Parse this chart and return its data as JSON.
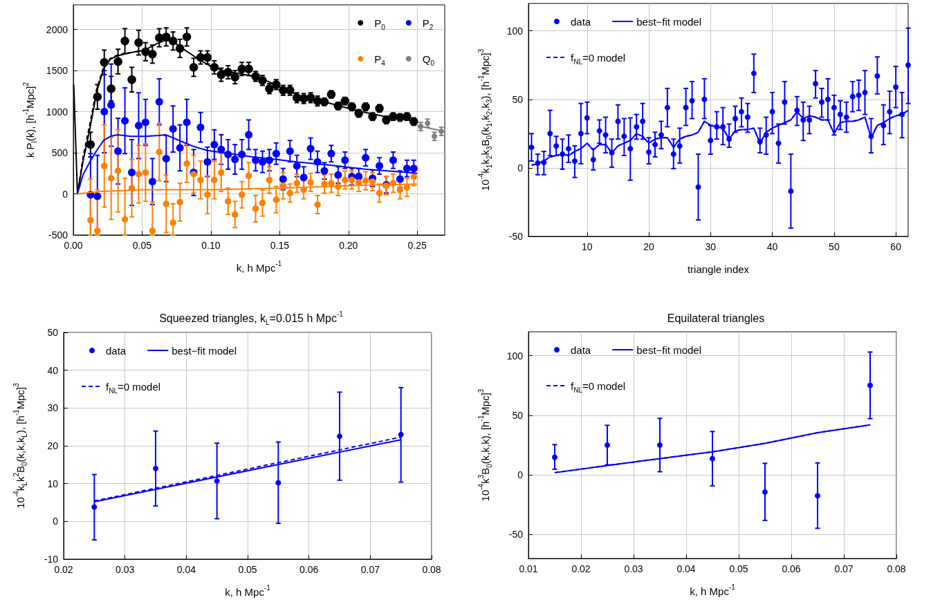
{
  "chart_data": [
    {
      "type": "scatter",
      "xlabel": "k, h Mpc$^{-1}$",
      "ylabel": "k P$_{l}$(k), [h$^{-1}$Mpc]$^{2}$",
      "xlim": [
        0,
        0.27
      ],
      "xticks": [
        {
          "value": 0,
          "label": "0.00"
        },
        {
          "value": 0.05,
          "label": "0.05"
        },
        {
          "value": 0.1,
          "label": "0.10"
        },
        {
          "value": 0.15,
          "label": "0.15"
        },
        {
          "value": 0.2,
          "label": "0.20"
        },
        {
          "value": 0.25,
          "label": "0.25"
        }
      ],
      "ylim": [
        -500,
        2300
      ],
      "yticks": [
        -500,
        0,
        500,
        1000,
        1500,
        2000
      ],
      "grid": true,
      "legend": "top right",
      "marker": "circle",
      "x": [
        0.0125,
        0.0175,
        0.0225,
        0.0275,
        0.0325,
        0.0375,
        0.0425,
        0.0475,
        0.0525,
        0.0575,
        0.0625,
        0.0675,
        0.0725,
        0.0775,
        0.0825,
        0.0875,
        0.0925,
        0.0975,
        0.1025,
        0.1075,
        0.1125,
        0.1175,
        0.1225,
        0.1275,
        0.1325,
        0.1375,
        0.1425,
        0.1475,
        0.1525,
        0.1575,
        0.1625,
        0.1675,
        0.1725,
        0.1775,
        0.1825,
        0.1875,
        0.1925,
        0.1975,
        0.2025,
        0.2075,
        0.2125,
        0.2175,
        0.2225,
        0.2275,
        0.2325,
        0.2375,
        0.2425,
        0.2475
      ],
      "series": [
        {
          "type": "line",
          "marker": "none",
          "color": "#000000",
          "x": [
            0.0003,
            0.003,
            0.007,
            0.012,
            0.017,
            0.022,
            0.027,
            0.032,
            0.042,
            0.052,
            0.061,
            0.067,
            0.072,
            0.081,
            0.091,
            0.101,
            0.111,
            0.1225,
            0.134,
            0.147,
            0.152,
            0.167,
            0.187,
            0.207,
            0.227,
            0.25
          ],
          "values": [
            1330,
            0,
            390,
            790,
            1240,
            1520,
            1640,
            1680,
            1720,
            1750,
            1830,
            1870,
            1860,
            1750,
            1640,
            1540,
            1490,
            1460,
            1420,
            1330,
            1280,
            1180,
            1100,
            1010,
            940,
            880
          ]
        },
        {
          "type": "line",
          "marker": "none",
          "line_style": "dashed",
          "color": "#000000",
          "x": [
            0.003,
            0.007,
            0.012,
            0.017,
            0.022,
            0.027,
            0.032,
            0.042,
            0.052
          ],
          "values": [
            0,
            440,
            850,
            1280,
            1540,
            1650,
            1690,
            1720,
            1750
          ]
        },
        {
          "type": "line",
          "marker": "none",
          "color": "#0000ff",
          "x": [
            0.003,
            0.007,
            0.012,
            0.017,
            0.022,
            0.027,
            0.032,
            0.042,
            0.052,
            0.062,
            0.067,
            0.077,
            0.087,
            0.097,
            0.114,
            0.13,
            0.147,
            0.162,
            0.187,
            0.212,
            0.237,
            0.25
          ],
          "values": [
            0,
            230,
            390,
            530,
            650,
            700,
            720,
            700,
            700,
            710,
            720,
            650,
            580,
            530,
            490,
            450,
            420,
            390,
            350,
            300,
            270,
            250
          ]
        },
        {
          "type": "line",
          "marker": "none",
          "color": "#ff8000",
          "x": [
            0.003,
            0.02,
            0.05,
            0.1,
            0.15,
            0.2,
            0.25
          ],
          "values": [
            0,
            30,
            50,
            50,
            70,
            100,
            120
          ]
        },
        {
          "type": "line",
          "marker": "none",
          "color": "#808080",
          "x": [
            0.25,
            0.27
          ],
          "values": [
            830,
            760
          ]
        },
        {
          "name": "P$_{0}$",
          "color": "#000000",
          "values": [
            600,
            1180,
            1600,
            1280,
            1610,
            1860,
            1390,
            1840,
            1730,
            1700,
            1900,
            1910,
            1860,
            1770,
            1910,
            1540,
            1660,
            1660,
            1540,
            1450,
            1480,
            1420,
            1520,
            1520,
            1430,
            1380,
            1280,
            1330,
            1260,
            1260,
            1170,
            1160,
            1170,
            1130,
            1120,
            1210,
            1070,
            1130,
            1060,
            980,
            1060,
            940,
            1040,
            900,
            940,
            930,
            940,
            880
          ],
          "errors": [
            150,
            150,
            150,
            150,
            150,
            150,
            150,
            150,
            110,
            110,
            110,
            110,
            110,
            110,
            110,
            110,
            80,
            80,
            80,
            80,
            80,
            80,
            80,
            80,
            60,
            60,
            60,
            60,
            60,
            60,
            60,
            60,
            60,
            60,
            45,
            45,
            45,
            45,
            45,
            45,
            45,
            45,
            45,
            45,
            45,
            45,
            45,
            45
          ]
        },
        {
          "name": "P$_{2}$",
          "color": "#0000ff",
          "values": [
            -10,
            -30,
            1000,
            1080,
            520,
            890,
            260,
            830,
            870,
            150,
            1120,
            430,
            790,
            560,
            870,
            260,
            810,
            390,
            600,
            540,
            480,
            420,
            480,
            720,
            410,
            390,
            410,
            490,
            180,
            520,
            340,
            200,
            550,
            390,
            280,
            490,
            230,
            410,
            210,
            210,
            440,
            190,
            340,
            110,
            410,
            180,
            310,
            310
          ],
          "errors": [
            [
              -500,
              490
            ],
            [
              -500,
              470
            ],
            500,
            500,
            400,
            400,
            400,
            400,
            280,
            280,
            280,
            280,
            280,
            280,
            280,
            280,
            180,
            180,
            180,
            180,
            180,
            180,
            180,
            180,
            130,
            130,
            130,
            130,
            130,
            130,
            130,
            130,
            130,
            130,
            100,
            100,
            100,
            100,
            100,
            100,
            100,
            100,
            100,
            100,
            100,
            100,
            100,
            100
          ]
        },
        {
          "name": "P$_{4}$",
          "color": "#ff8000",
          "values": [
            -320,
            -450,
            340,
            190,
            280,
            -310,
            70,
            240,
            260,
            -450,
            510,
            -120,
            -350,
            -100,
            370,
            240,
            170,
            -10,
            170,
            260,
            -90,
            -250,
            -10,
            220,
            -180,
            -110,
            170,
            -70,
            100,
            10,
            130,
            50,
            140,
            -130,
            120,
            130,
            90,
            170,
            170,
            140,
            160,
            150,
            10,
            100,
            130,
            50,
            80,
            210
          ],
          "errors": [
            [
              -500,
              180
            ],
            [
              -500,
              50
            ],
            500,
            500,
            500,
            [
              -500,
              190
            ],
            350,
            350,
            350,
            [
              -500,
              -100
            ],
            350,
            350,
            [
              -500,
              -120
            ],
            230,
            230,
            230,
            230,
            230,
            230,
            230,
            160,
            160,
            160,
            160,
            160,
            160,
            160,
            160,
            160,
            110,
            110,
            110,
            110,
            110,
            110,
            110,
            110,
            110,
            110,
            110,
            110,
            110,
            110,
            110,
            110,
            110,
            110,
            110
          ]
        },
        {
          "name": "Q$_{0}$",
          "color": "#808080",
          "x": [
            0.2525,
            0.2575,
            0.2625,
            0.2675
          ],
          "values": [
            820,
            860,
            700,
            760
          ],
          "errors": [
            50,
            50,
            50,
            50
          ]
        }
      ]
    },
    {
      "type": "scatter",
      "xlabel": "triangle index",
      "ylabel": "10$^{-4}$k$_{1}$k$_{2}$k$_{3}$B$_{0}$(k$_{1}$,k$_{2}$,k$_{3}$), [h$^{-1}$Mpc]$^{3}$",
      "xlim": [
        0.5,
        62
      ],
      "xticks": [
        10,
        20,
        30,
        40,
        50,
        60
      ],
      "ylim": [
        -50,
        120
      ],
      "yticks": [
        -50,
        0,
        50,
        100
      ],
      "grid": true,
      "legend": "top left",
      "marker": "circle",
      "x": [
        1,
        2,
        3,
        4,
        5,
        6,
        7,
        8,
        9,
        10,
        11,
        12,
        13,
        14,
        15,
        16,
        17,
        18,
        19,
        20,
        21,
        22,
        23,
        24,
        25,
        26,
        27,
        28,
        29,
        30,
        31,
        32,
        33,
        34,
        35,
        36,
        37,
        38,
        39,
        40,
        41,
        42,
        43,
        44,
        45,
        46,
        47,
        48,
        49,
        50,
        51,
        52,
        53,
        54,
        55,
        56,
        57,
        58,
        59,
        60,
        61,
        62
      ],
      "series": [
        {
          "name": "data",
          "color": "#0000ff",
          "values": [
            15,
            3.5,
            4,
            25,
            16,
            10,
            14,
            5,
            25,
            36.5,
            6,
            27,
            24,
            11,
            34,
            23,
            14,
            30,
            34,
            11.5,
            17,
            24,
            44,
            10,
            16,
            44,
            49,
            -14,
            50,
            20,
            30,
            30,
            21,
            36,
            41,
            37,
            69,
            19,
            24,
            41,
            18,
            48,
            -17,
            42,
            35,
            35,
            61.5,
            48,
            50,
            44,
            39,
            37,
            52,
            53,
            55,
            23,
            67,
            31,
            41,
            59,
            39,
            75
          ],
          "errors": [
            [
              5,
              25
            ],
            [
              -5,
              10
            ],
            [
              -5,
              12
            ],
            [
              9,
              42
            ],
            [
              9,
              23
            ],
            [
              -1,
              21
            ],
            [
              4,
              24
            ],
            [
              -7,
              16
            ],
            [
              3,
              47
            ],
            [
              25,
              48
            ],
            [
              -1.5,
              14
            ],
            [
              18,
              35
            ],
            [
              11,
              37
            ],
            [
              0.5,
              21
            ],
            [
              21,
              46
            ],
            [
              9,
              36
            ],
            [
              -9,
              36.5
            ],
            [
              21,
              39
            ],
            [
              21,
              47
            ],
            [
              3,
              22
            ],
            [
              8,
              26
            ],
            [
              14,
              34
            ],
            [
              30,
              58
            ],
            [
              -0.5,
              21
            ],
            [
              3.5,
              29
            ],
            [
              31,
              58
            ],
            [
              36,
              63
            ],
            [
              -38,
              10
            ],
            [
              36,
              65
            ],
            [
              10,
              31
            ],
            [
              21,
              41
            ],
            [
              17,
              44
            ],
            [
              15,
              32
            ],
            [
              26,
              45
            ],
            [
              30,
              51
            ],
            [
              26,
              47
            ],
            [
              55,
              83
            ],
            [
              11,
              29
            ],
            [
              10,
              37
            ],
            [
              25,
              55
            ],
            [
              3.5,
              32
            ],
            [
              32,
              63
            ],
            [
              -44,
              10
            ],
            [
              31,
              52
            ],
            [
              20,
              48
            ],
            [
              25,
              45
            ],
            [
              51,
              71
            ],
            [
              37,
              58
            ],
            [
              35,
              65
            ],
            [
              24,
              53
            ],
            [
              28,
              49
            ],
            [
              26,
              48
            ],
            [
              41,
              63
            ],
            [
              42,
              64
            ],
            [
              39,
              71
            ],
            [
              11,
              36
            ],
            [
              54,
              81
            ],
            [
              17,
              46
            ],
            [
              25,
              56
            ],
            [
              44,
              74
            ],
            [
              22,
              55
            ],
            [
              47,
              102
            ]
          ]
        },
        {
          "name": "best−fit model",
          "type": "line",
          "marker": "none",
          "color": "#0000ff",
          "values": [
            2,
            3,
            5,
            8,
            9,
            10,
            9,
            12,
            14,
            18,
            13,
            17,
            17,
            11,
            16,
            18,
            20,
            25,
            23,
            18,
            21,
            22,
            22,
            15,
            21,
            23,
            24,
            26,
            34,
            31,
            30,
            29,
            21,
            27,
            28,
            28,
            29,
            18,
            26,
            29,
            31,
            33,
            35,
            41,
            36,
            38,
            37,
            35,
            35,
            25,
            33,
            34,
            34,
            35,
            37,
            22,
            31,
            33,
            36,
            38,
            39,
            42
          ]
        },
        {
          "name": "f$_{NL}$=0 model",
          "type": "line",
          "marker": "none",
          "line_style": "dashed",
          "color": "#0000ff",
          "values": [
            2,
            3,
            5,
            8,
            9,
            10,
            9,
            12,
            14,
            18,
            13,
            17,
            17,
            11,
            16,
            18,
            20,
            25,
            23,
            18,
            21,
            22,
            22,
            15,
            21,
            23,
            24,
            26,
            34,
            31,
            30,
            29,
            21,
            27,
            28,
            28,
            29,
            18,
            26,
            29,
            31,
            33,
            35,
            41,
            36,
            38,
            37,
            35,
            35,
            25,
            33,
            34,
            34,
            35,
            37,
            22,
            31,
            33,
            36,
            38,
            39,
            42
          ]
        }
      ]
    },
    {
      "type": "scatter",
      "title": "Squeezed triangles, k$_{L}$=0.015 h Mpc$^{-1}$",
      "xlabel": "k, h Mpc$^{-1}$",
      "ylabel": "10$^{-4}$k$_{L}$k$^{2}$B$_{0}$(k,k,k$_{L}$), [h$^{-1}$Mpc]$^{3}$",
      "xlim": [
        0.02,
        0.08
      ],
      "xticks": [
        0.02,
        0.03,
        0.04,
        0.05,
        0.06,
        0.07,
        0.08
      ],
      "ylim": [
        -10,
        50
      ],
      "yticks": [
        -10,
        0,
        10,
        20,
        30,
        40,
        50
      ],
      "grid": true,
      "legend": "top left",
      "marker": "circle",
      "x": [
        0.025,
        0.035,
        0.045,
        0.055,
        0.065,
        0.075
      ],
      "series": [
        {
          "name": "data",
          "color": "#0000ff",
          "values": [
            3.8,
            14.0,
            10.7,
            10.2,
            22.5,
            23.0
          ],
          "errors": [
            [
              -4.9,
              12.4
            ],
            [
              4.1,
              23.9
            ],
            [
              0.7,
              20.7
            ],
            [
              -0.5,
              21.0
            ],
            [
              10.9,
              34.2
            ],
            [
              10.4,
              35.4
            ]
          ]
        },
        {
          "name": "best−fit model",
          "type": "line",
          "marker": "none",
          "color": "#0000ff",
          "x": [
            0.025,
            0.075
          ],
          "values": [
            5.2,
            21.6
          ]
        },
        {
          "name": "f$_{NL}$=0 model",
          "type": "line",
          "marker": "none",
          "line_style": "dashed",
          "color": "#0000ff",
          "x": [
            0.025,
            0.075
          ],
          "values": [
            5.4,
            22.3
          ]
        }
      ]
    },
    {
      "type": "scatter",
      "title": "Equilateral triangles",
      "xlabel": "k, h Mpc$^{-1}$",
      "ylabel": "10$^{-4}$k$^{3}$B$_{0}$(k,k,k), [h$^{-1}$Mpc]$^{3}$",
      "xlim": [
        0.01,
        0.08
      ],
      "xticks": [
        0.01,
        0.02,
        0.03,
        0.04,
        0.05,
        0.06,
        0.07,
        0.08
      ],
      "ylim": [
        -70,
        120
      ],
      "yticks": [
        -50,
        0,
        50,
        100
      ],
      "grid": true,
      "legend": "top left",
      "marker": "circle",
      "x": [
        0.015,
        0.025,
        0.035,
        0.045,
        0.055,
        0.065,
        0.075
      ],
      "series": [
        {
          "name": "data",
          "color": "#0000ff",
          "values": [
            14.9,
            25.0,
            25.0,
            13.7,
            -14.3,
            -17.4,
            75.1
          ],
          "errors": [
            [
              4.8,
              25.4
            ],
            [
              8.5,
              41.6
            ],
            [
              2.7,
              47.4
            ],
            [
              -9.1,
              36.4
            ],
            [
              -38.1,
              9.7
            ],
            [
              -44.7,
              10.1
            ],
            [
              47.2,
              103
            ]
          ]
        },
        {
          "name": "best−fit model",
          "type": "line",
          "marker": "none",
          "color": "#0000ff",
          "values": [
            1.9,
            7.9,
            13.7,
            19.4,
            26.5,
            35.4,
            42.0
          ]
        },
        {
          "name": "f$_{NL}$=0 model",
          "type": "line",
          "marker": "none",
          "line_style": "dashed",
          "color": "#0000ff",
          "values": [
            1.9,
            7.9,
            13.7,
            19.4,
            26.5,
            35.4,
            42.0
          ]
        }
      ]
    }
  ]
}
